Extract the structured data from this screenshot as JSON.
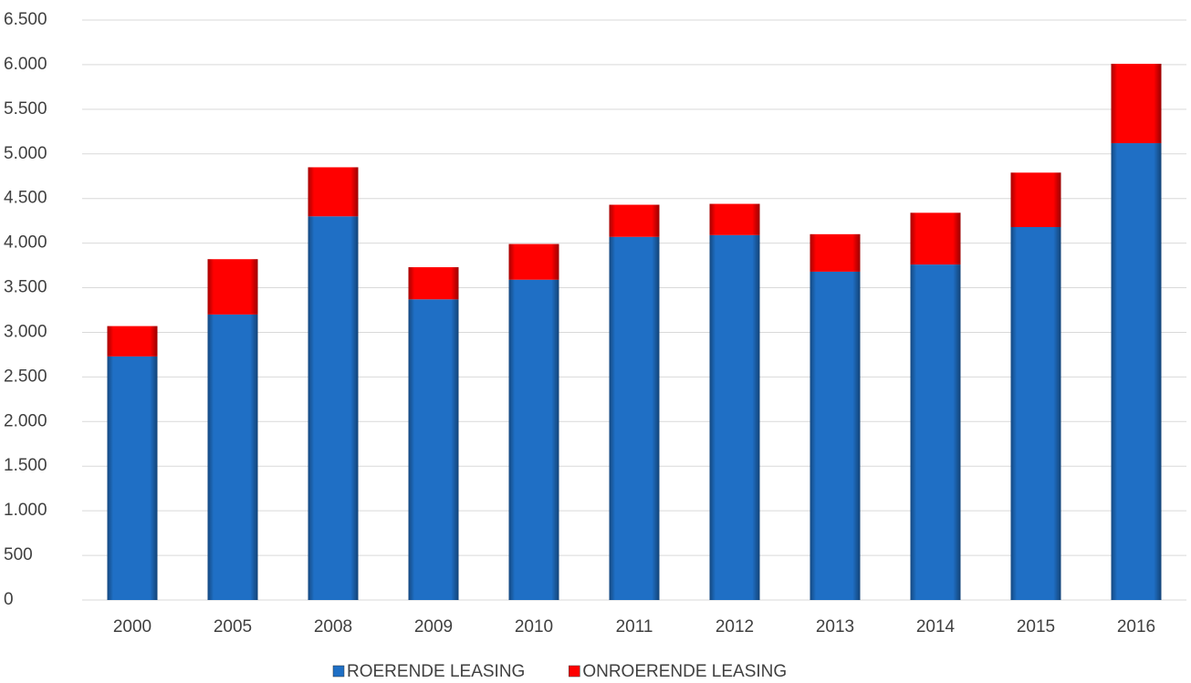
{
  "chart_data": {
    "type": "stacked-bar",
    "categories": [
      "2000",
      "2005",
      "2008",
      "2009",
      "2010",
      "2011",
      "2012",
      "2013",
      "2014",
      "2015",
      "2016"
    ],
    "series": [
      {
        "name": "ROERENDE LEASING",
        "color": "#1f6fc5",
        "values": [
          2730,
          3200,
          4300,
          3370,
          3590,
          4070,
          4090,
          3680,
          3760,
          4180,
          5120
        ]
      },
      {
        "name": "ONROERENDE LEASING",
        "color": "#ff0000",
        "values": [
          340,
          620,
          550,
          360,
          400,
          360,
          350,
          420,
          580,
          610,
          890
        ]
      }
    ],
    "ylim": [
      0,
      6500
    ],
    "yticks": [
      0,
      500,
      {
        "value": 1000,
        "label": "1.000"
      },
      {
        "value": 1500,
        "label": "1.500"
      },
      {
        "value": 2000,
        "label": "2.000"
      },
      {
        "value": 2500,
        "label": "2.500"
      },
      {
        "value": 3000,
        "label": "3.000"
      },
      {
        "value": 3500,
        "label": "3.500"
      },
      {
        "value": 4000,
        "label": "4.000"
      },
      {
        "value": 4500,
        "label": "4.500"
      },
      {
        "value": 5000,
        "label": "5.000"
      },
      {
        "value": 5500,
        "label": "5.500"
      },
      {
        "value": 6000,
        "label": "6.000"
      },
      {
        "value": 6500,
        "label": "6.500"
      }
    ],
    "grid": true,
    "legend": "bottom"
  }
}
